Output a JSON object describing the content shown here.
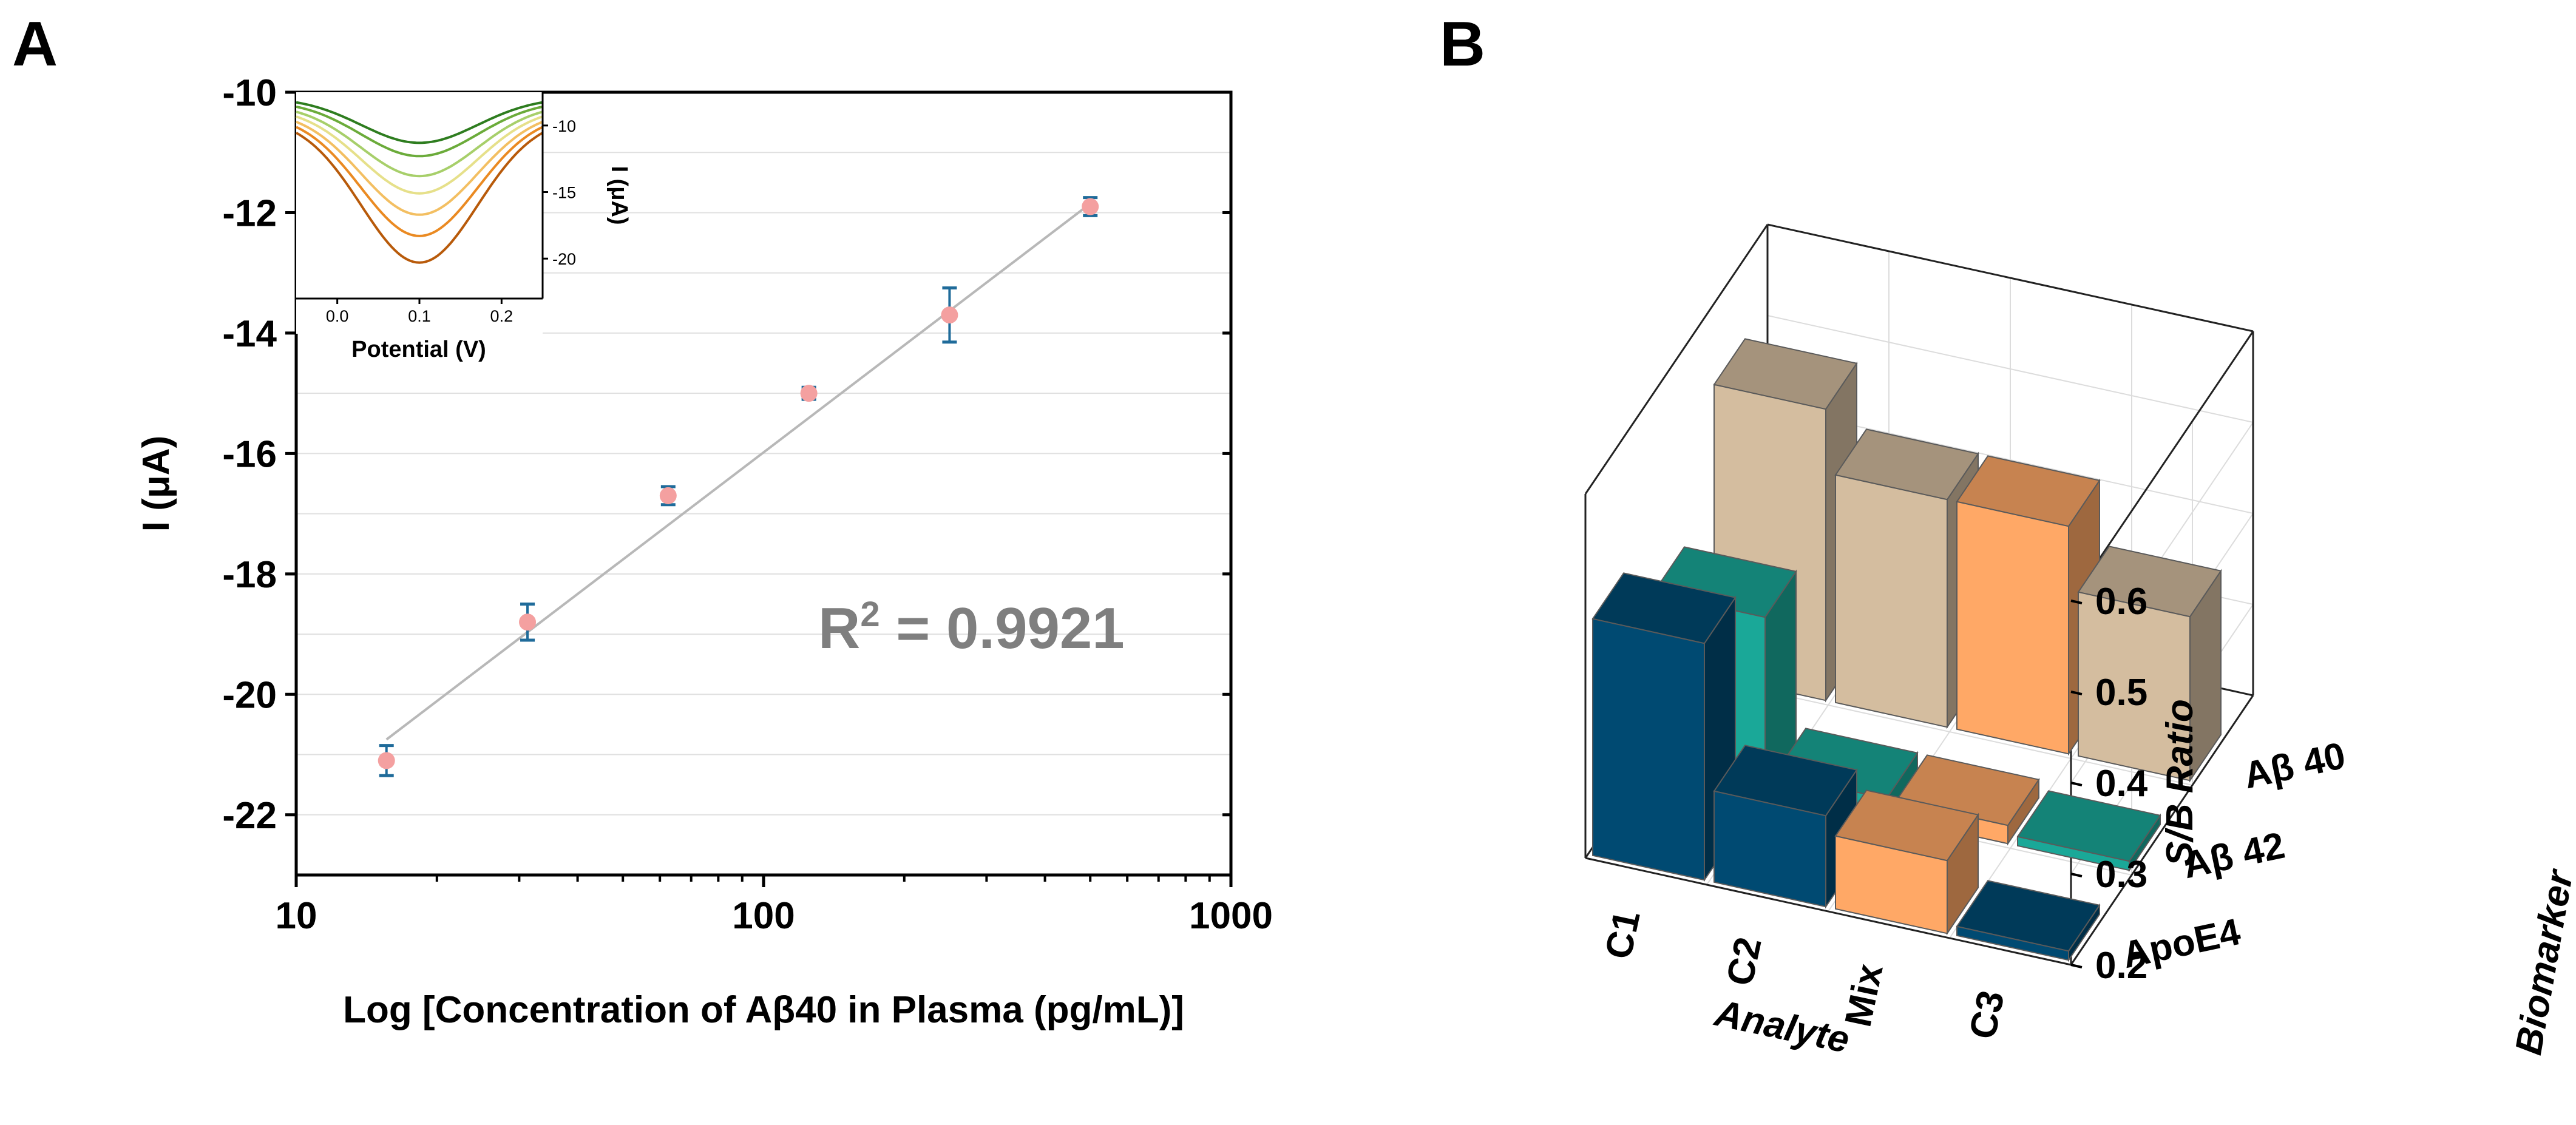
{
  "panels": {
    "a_label": "A",
    "b_label": "B"
  },
  "chart_data": [
    {
      "type": "scatter",
      "title": "",
      "xlabel": "Log [Concentration of Aβ40 in Plasma (pg/mL)]",
      "ylabel": "I (μA)",
      "xscale": "log",
      "xlim": [
        10,
        1000
      ],
      "ylim": [
        -23,
        -10
      ],
      "xticks": [
        10,
        100,
        1000
      ],
      "xtick_labels": [
        "10",
        "100",
        "1000"
      ],
      "yticks": [
        -10,
        -12,
        -14,
        -16,
        -18,
        -20,
        -22
      ],
      "ytick_labels": [
        "-10",
        "-12",
        "-14",
        "-16",
        "-18",
        "-20",
        "-22"
      ],
      "grid": true,
      "points": [
        {
          "x": 15.6,
          "y": -21.1,
          "err": 0.25
        },
        {
          "x": 31.25,
          "y": -18.8,
          "err": 0.3
        },
        {
          "x": 62.5,
          "y": -16.7,
          "err": 0.15
        },
        {
          "x": 125,
          "y": -15.0,
          "err": 0.1
        },
        {
          "x": 250,
          "y": -13.7,
          "err": 0.45
        },
        {
          "x": 500,
          "y": -11.9,
          "err": 0.15
        }
      ],
      "fit": {
        "x": [
          15.6,
          500
        ],
        "y": [
          -20.75,
          -11.85
        ]
      },
      "annotation": {
        "prefix": "R",
        "superscript": "2",
        "text": " = 0.9921"
      },
      "colors": {
        "marker": "#f4a0a0",
        "errorbar": "#1f6b9a",
        "fit": "#b8b8b8",
        "annotation": "#7f7f7f"
      },
      "inset": {
        "type": "line",
        "xlabel": "Potential (V)",
        "ylabel": "I (μA)",
        "xlim": [
          -0.05,
          0.25
        ],
        "ylim": [
          -23,
          -7.5
        ],
        "xticks": [
          0.0,
          0.1,
          0.2
        ],
        "xtick_labels": [
          "0.0",
          "0.1",
          "0.2"
        ],
        "yticks": [
          -10,
          -15,
          -20
        ],
        "ytick_labels": [
          "-10",
          "-15",
          "-20"
        ],
        "series_minima": [
          -11.3,
          -12.3,
          -13.8,
          -15.1,
          -16.7,
          -18.3,
          -20.3
        ],
        "series_colors": [
          "#2e7d1f",
          "#6bab3a",
          "#a7cf6a",
          "#e6e08a",
          "#f3bf62",
          "#ea8a22",
          "#b85a0a"
        ]
      }
    },
    {
      "type": "bar3d",
      "zlabel": "S/B Ratio",
      "xlabel": "Analyte",
      "ylabel": "Biomarker",
      "zlim": [
        0.2,
        0.6
      ],
      "zticks": [
        "0.6",
        "0.5",
        "0.4",
        "0.3",
        "0.2"
      ],
      "analytes": [
        "C1",
        "C2",
        "Mix",
        "C3"
      ],
      "biomarkers": [
        "Aβ 40",
        "Aβ 42",
        "ApoE4"
      ],
      "series": [
        {
          "name": "Aβ 40",
          "values": [
            0.52,
            0.45,
            0.45,
            0.38
          ],
          "color": "#d4bd9f"
        },
        {
          "name": "Aβ 42",
          "values": [
            0.39,
            0.22,
            0.22,
            0.21
          ],
          "color": "#1aa898"
        },
        {
          "name": "ApoE4",
          "values": [
            0.46,
            0.3,
            0.28,
            0.21
          ],
          "color": "#004a72"
        }
      ],
      "highlight_color": "#ffa866",
      "highlight_analyte": "Mix"
    }
  ]
}
